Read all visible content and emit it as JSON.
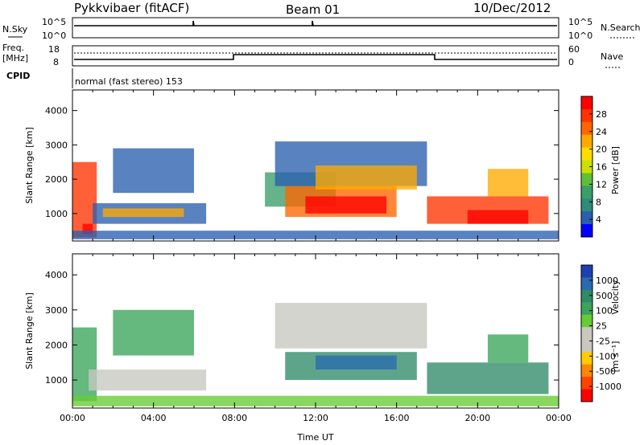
{
  "header": {
    "station": "Pykkvibaer (fitACF)",
    "beam": "Beam 01",
    "date": "10/Dec/2012"
  },
  "panels": {
    "nsky_label": "N.Sky",
    "nsky_ticks": [
      "10^5",
      "10^0"
    ],
    "nsearch_label": "N.Search",
    "nsearch_ticks": [
      "10^5",
      "10^0"
    ],
    "freq_label": "Freq.",
    "freq_unit": "[MHz]",
    "freq_ticks": [
      "18",
      "8"
    ],
    "nave_label": "Nave",
    "nave_ticks": [
      "60",
      "0"
    ],
    "cpid_label": "CPID",
    "cpid_text": "normal (fast stereo) 153"
  },
  "colorbars": {
    "power": {
      "label": "Power [dB]",
      "ticks": [
        "28",
        "24",
        "20",
        "16",
        "12",
        "8",
        "4"
      ],
      "colors": [
        "#ff0000",
        "#ff3300",
        "#ff6600",
        "#ffaa00",
        "#ffdd00",
        "#cce000",
        "#5fbf3a",
        "#3a9e6a",
        "#2f8a7a",
        "#2a5fb0",
        "#0000ff"
      ]
    },
    "velocity": {
      "label_main": "Velocity",
      "label_unit": "[m s⁻¹]",
      "ticks": [
        "1000",
        "500",
        "100",
        "25",
        "-25",
        "-100",
        "-500",
        "-1000"
      ],
      "colors": [
        "#1f3fb0",
        "#2a6ab0",
        "#2f8a6a",
        "#3aa55a",
        "#66cc33",
        "#c8c8c0",
        "#c8c8c0",
        "#ffcc00",
        "#ff8800",
        "#ff4400",
        "#ff0000"
      ]
    }
  },
  "chart_data": [
    {
      "type": "heatmap",
      "name": "power-panel",
      "ylabel": "Slant Range [km]",
      "yticks": [
        1000,
        2000,
        3000,
        4000
      ],
      "ylim": [
        200,
        4600
      ],
      "xlim": [
        0,
        24
      ],
      "regions": [
        {
          "x": [
            0.0,
            1.2
          ],
          "y": [
            300,
            2500
          ],
          "color": "#ff3300"
        },
        {
          "x": [
            0.5,
            1.0
          ],
          "y": [
            400,
            700
          ],
          "color": "#ff0000"
        },
        {
          "x": [
            1.0,
            6.6
          ],
          "y": [
            700,
            1300
          ],
          "color": "#2a5fb0"
        },
        {
          "x": [
            1.5,
            5.5
          ],
          "y": [
            900,
            1150
          ],
          "color": "#ffaa00"
        },
        {
          "x": [
            2.0,
            6.0
          ],
          "y": [
            1600,
            2900
          ],
          "color": "#2a5fb0"
        },
        {
          "x": [
            9.5,
            13.0
          ],
          "y": [
            1200,
            2200
          ],
          "color": "#3a9e6a"
        },
        {
          "x": [
            10.5,
            16.0
          ],
          "y": [
            900,
            1800
          ],
          "color": "#ff6600"
        },
        {
          "x": [
            11.5,
            15.5
          ],
          "y": [
            1000,
            1500
          ],
          "color": "#ff0000"
        },
        {
          "x": [
            10.0,
            17.5
          ],
          "y": [
            1800,
            3100
          ],
          "color": "#2a5fb0"
        },
        {
          "x": [
            12.0,
            17.0
          ],
          "y": [
            1700,
            2400
          ],
          "color": "#ffaa00"
        },
        {
          "x": [
            17.5,
            23.5
          ],
          "y": [
            700,
            1500
          ],
          "color": "#ff3300"
        },
        {
          "x": [
            19.5,
            22.5
          ],
          "y": [
            700,
            1100
          ],
          "color": "#ff0000"
        },
        {
          "x": [
            20.5,
            22.5
          ],
          "y": [
            1500,
            2300
          ],
          "color": "#ffaa00"
        },
        {
          "x": [
            0.0,
            24.0
          ],
          "y": [
            250,
            500
          ],
          "color": "#2a5fb0"
        }
      ]
    },
    {
      "type": "heatmap",
      "name": "velocity-panel",
      "ylabel": "Slant Range [km]",
      "xlabel": "Time UT",
      "xticks": [
        "00:00",
        "04:00",
        "08:00",
        "12:00",
        "16:00",
        "20:00",
        "00:00"
      ],
      "xtick_values": [
        0,
        4,
        8,
        12,
        16,
        20,
        24
      ],
      "yticks": [
        1000,
        2000,
        3000,
        4000
      ],
      "ylim": [
        200,
        4600
      ],
      "xlim": [
        0,
        24
      ],
      "regions": [
        {
          "x": [
            0.0,
            1.2
          ],
          "y": [
            400,
            2500
          ],
          "color": "#3aa55a"
        },
        {
          "x": [
            0.8,
            6.6
          ],
          "y": [
            700,
            1300
          ],
          "color": "#c8c8c0"
        },
        {
          "x": [
            2.0,
            6.0
          ],
          "y": [
            1700,
            3000
          ],
          "color": "#3aa55a"
        },
        {
          "x": [
            10.0,
            17.5
          ],
          "y": [
            1900,
            3200
          ],
          "color": "#c8c8c0"
        },
        {
          "x": [
            10.5,
            17.0
          ],
          "y": [
            1000,
            1800
          ],
          "color": "#2f8a6a"
        },
        {
          "x": [
            12.0,
            16.0
          ],
          "y": [
            1300,
            1700
          ],
          "color": "#2a6ab0"
        },
        {
          "x": [
            17.5,
            23.5
          ],
          "y": [
            600,
            1500
          ],
          "color": "#2f8a6a"
        },
        {
          "x": [
            20.5,
            22.5
          ],
          "y": [
            1500,
            2300
          ],
          "color": "#3aa55a"
        },
        {
          "x": [
            0.0,
            24.0
          ],
          "y": [
            250,
            550
          ],
          "color": "#66cc33"
        }
      ]
    }
  ]
}
